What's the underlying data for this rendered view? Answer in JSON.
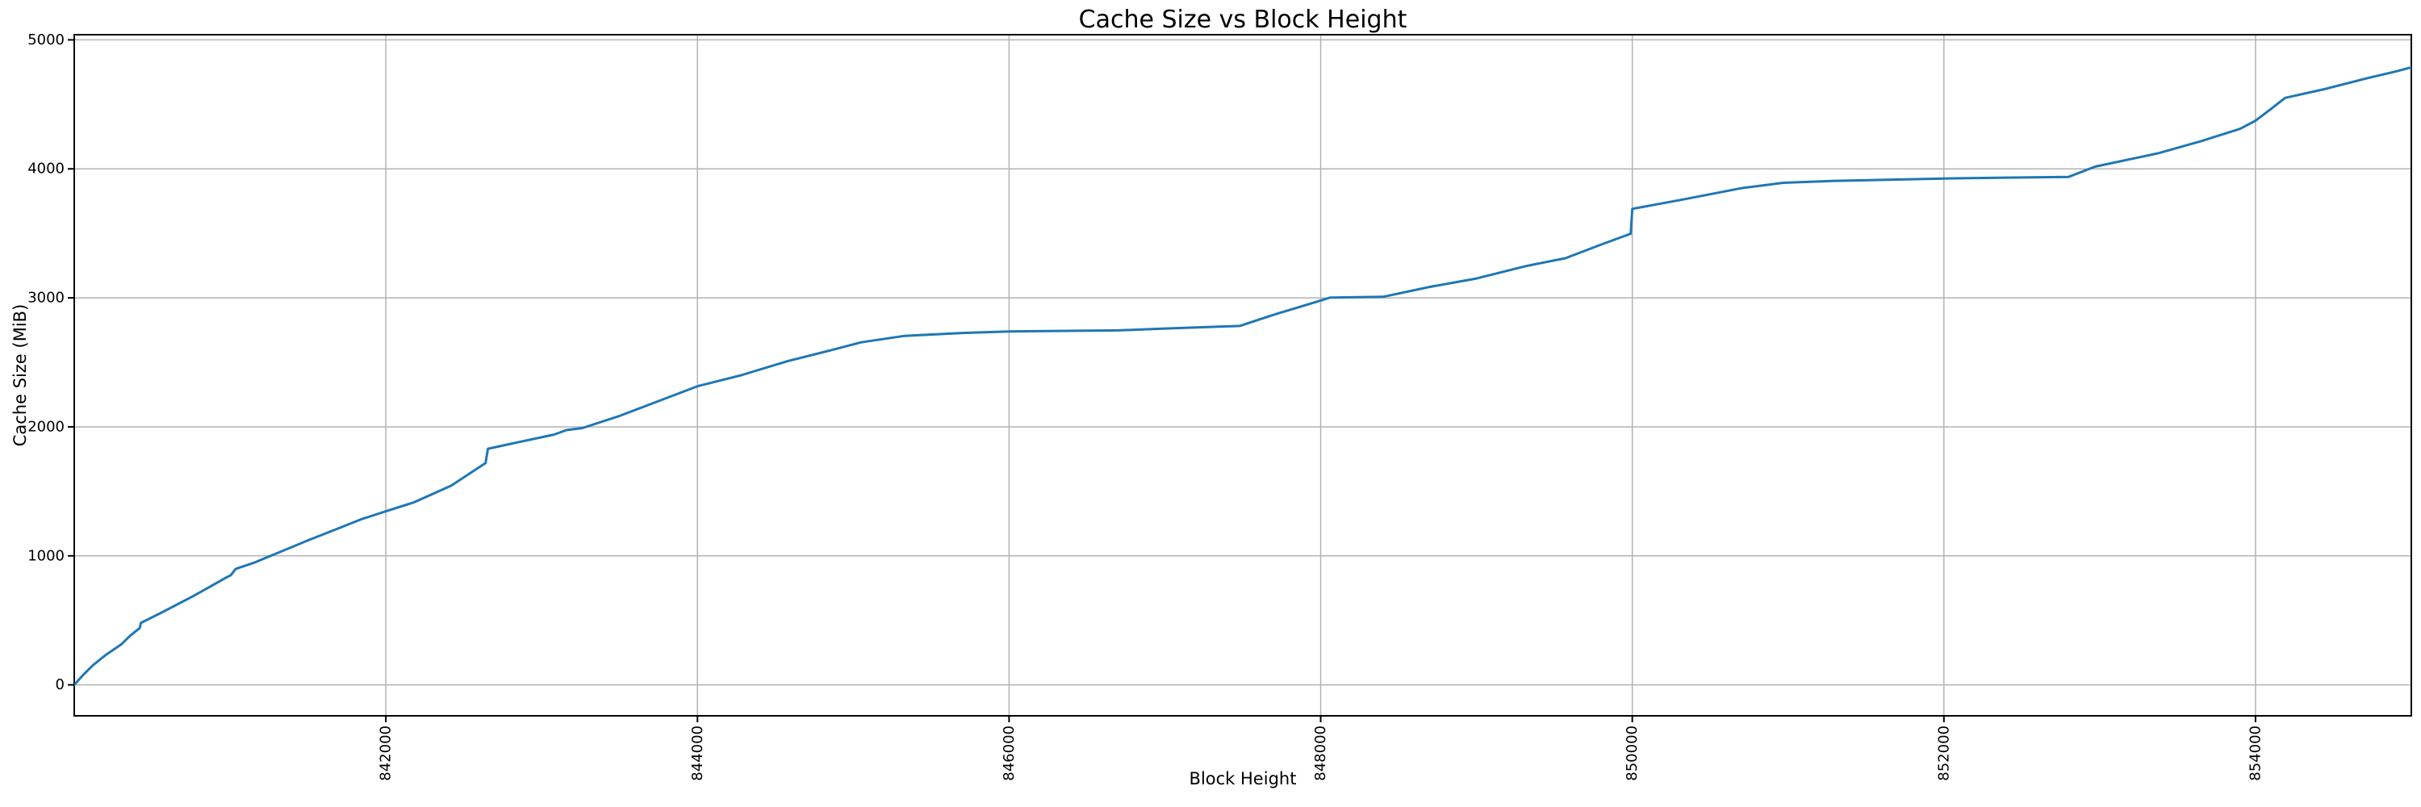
{
  "chart_data": {
    "type": "line",
    "title": "Cache Size vs Block Height",
    "xlabel": "Block Height",
    "ylabel": "Cache Size (MiB)",
    "x_ticks": [
      842000,
      844000,
      846000,
      848000,
      850000,
      852000,
      854000
    ],
    "y_ticks": [
      0,
      1000,
      2000,
      3000,
      4000,
      5000
    ],
    "xlim": [
      840000,
      855000
    ],
    "ylim": [
      -240,
      5040
    ],
    "grid": true,
    "legend": "none",
    "colors": {
      "line": "#1f77b4",
      "grid": "#b3b3b3",
      "spine": "#000000",
      "text": "#000000",
      "background": "#ffffff"
    },
    "series": [
      {
        "name": "Cache Size",
        "points": [
          [
            840000,
            0
          ],
          [
            840060,
            80
          ],
          [
            840120,
            152
          ],
          [
            840200,
            230
          ],
          [
            840300,
            312
          ],
          [
            840360,
            382
          ],
          [
            840420,
            440
          ],
          [
            840428,
            480
          ],
          [
            840560,
            560
          ],
          [
            840760,
            685
          ],
          [
            840980,
            835
          ],
          [
            841005,
            850
          ],
          [
            841035,
            898
          ],
          [
            841150,
            945
          ],
          [
            841300,
            1020
          ],
          [
            841500,
            1120
          ],
          [
            841700,
            1215
          ],
          [
            841840,
            1283
          ],
          [
            842000,
            1345
          ],
          [
            842180,
            1415
          ],
          [
            842420,
            1545
          ],
          [
            842640,
            1720
          ],
          [
            842655,
            1830
          ],
          [
            842800,
            1868
          ],
          [
            843080,
            1940
          ],
          [
            843160,
            1975
          ],
          [
            843260,
            1990
          ],
          [
            843500,
            2085
          ],
          [
            843750,
            2200
          ],
          [
            844000,
            2315
          ],
          [
            844280,
            2400
          ],
          [
            844580,
            2510
          ],
          [
            844850,
            2592
          ],
          [
            845050,
            2655
          ],
          [
            845330,
            2705
          ],
          [
            845700,
            2728
          ],
          [
            846000,
            2740
          ],
          [
            846700,
            2748
          ],
          [
            847000,
            2762
          ],
          [
            847480,
            2782
          ],
          [
            847700,
            2870
          ],
          [
            847970,
            2968
          ],
          [
            848060,
            3002
          ],
          [
            848400,
            3008
          ],
          [
            848700,
            3085
          ],
          [
            849000,
            3150
          ],
          [
            849315,
            3246
          ],
          [
            849570,
            3307
          ],
          [
            849820,
            3422
          ],
          [
            849990,
            3497
          ],
          [
            850000,
            3690
          ],
          [
            850350,
            3768
          ],
          [
            850700,
            3850
          ],
          [
            850970,
            3892
          ],
          [
            851300,
            3907
          ],
          [
            851700,
            3917
          ],
          [
            852000,
            3925
          ],
          [
            852400,
            3932
          ],
          [
            852800,
            3938
          ],
          [
            852970,
            4017
          ],
          [
            853380,
            4122
          ],
          [
            853650,
            4215
          ],
          [
            853900,
            4310
          ],
          [
            854000,
            4373
          ],
          [
            854100,
            4465
          ],
          [
            854190,
            4550
          ],
          [
            854450,
            4620
          ],
          [
            854700,
            4698
          ],
          [
            854900,
            4755
          ],
          [
            855000,
            4787
          ]
        ]
      }
    ]
  }
}
